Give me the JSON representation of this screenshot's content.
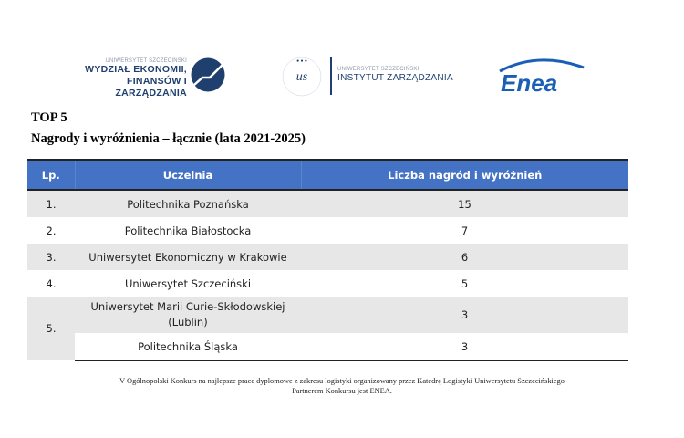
{
  "logos": {
    "wydzial": {
      "small": "UNIWERSYTET SZCZECIŃSKI",
      "line1": "WYDZIAŁ EKONOMII,",
      "line2": "FINANSÓW I ZARZĄDZANIA"
    },
    "instytut": {
      "seal": "UNIWERSYTET SZCZECIŃSKI",
      "small": "UNIWERSYTET SZCZECIŃSKI",
      "big": "INSTYTUT ZARZĄDZANIA"
    },
    "enea": {
      "text": "Enea"
    },
    "colors": {
      "navy": "#1f3f6e",
      "enea_blue": "#1a5fb4"
    }
  },
  "title": "TOP 5",
  "subtitle": "Nagrody i wyróżnienia – łącznie (lata 2021-2025)",
  "table": {
    "headers": [
      "Lp.",
      "Uczelnia",
      "Liczba nagród i wyróżnień"
    ],
    "header_color": "#4472c4",
    "rows": [
      {
        "lp": "1.",
        "name": "Politechnika Poznańska",
        "count": "15"
      },
      {
        "lp": "2.",
        "name": "Politechnika Białostocka",
        "count": "7"
      },
      {
        "lp": "3.",
        "name": "Uniwersytet Ekonomiczny w Krakowie",
        "count": "6"
      },
      {
        "lp": "4.",
        "name": "Uniwersytet Szczeciński",
        "count": "5"
      },
      {
        "lp": "5.",
        "name": "Uniwersytet Marii Curie-Skłodowskiej (Lublin)",
        "count": "3"
      },
      {
        "lp": "",
        "name": "Politechnika Śląska",
        "count": "3"
      }
    ]
  },
  "footer": {
    "line1": "V Ogólnopolski Konkurs na najlepsze prace dyplomowe z zakresu logistyki organizowany przez Katedrę Logistyki Uniwersytetu Szczecińskiego",
    "line2": "Partnerem Konkursu jest ENEA."
  }
}
